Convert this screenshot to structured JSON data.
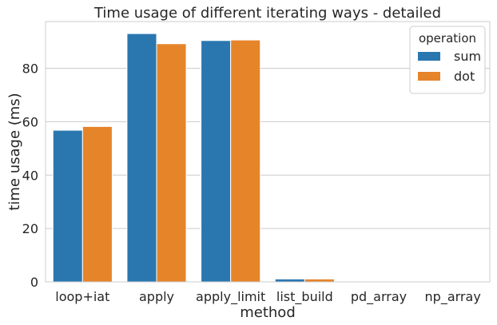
{
  "chart_data": {
    "type": "bar",
    "title": "Time usage of different iterating ways - detailed",
    "xlabel": "method",
    "ylabel": "time usage (ms)",
    "categories": [
      "loop+iat",
      "apply",
      "apply_limit",
      "list_build",
      "pd_array",
      "np_array"
    ],
    "series": [
      {
        "name": "sum",
        "color": "#2a77b0",
        "values": [
          56.8,
          93.0,
          90.4,
          1.1,
          0.15,
          0.1
        ]
      },
      {
        "name": "dot",
        "color": "#e6842a",
        "values": [
          58.2,
          89.2,
          90.6,
          1.1,
          0.15,
          0.1
        ]
      }
    ],
    "ylim": [
      0,
      97.5
    ],
    "yticks": [
      0,
      20,
      40,
      60,
      80
    ],
    "grid": "horizontal",
    "legend": {
      "title": "operation",
      "placement": "top-right"
    }
  }
}
